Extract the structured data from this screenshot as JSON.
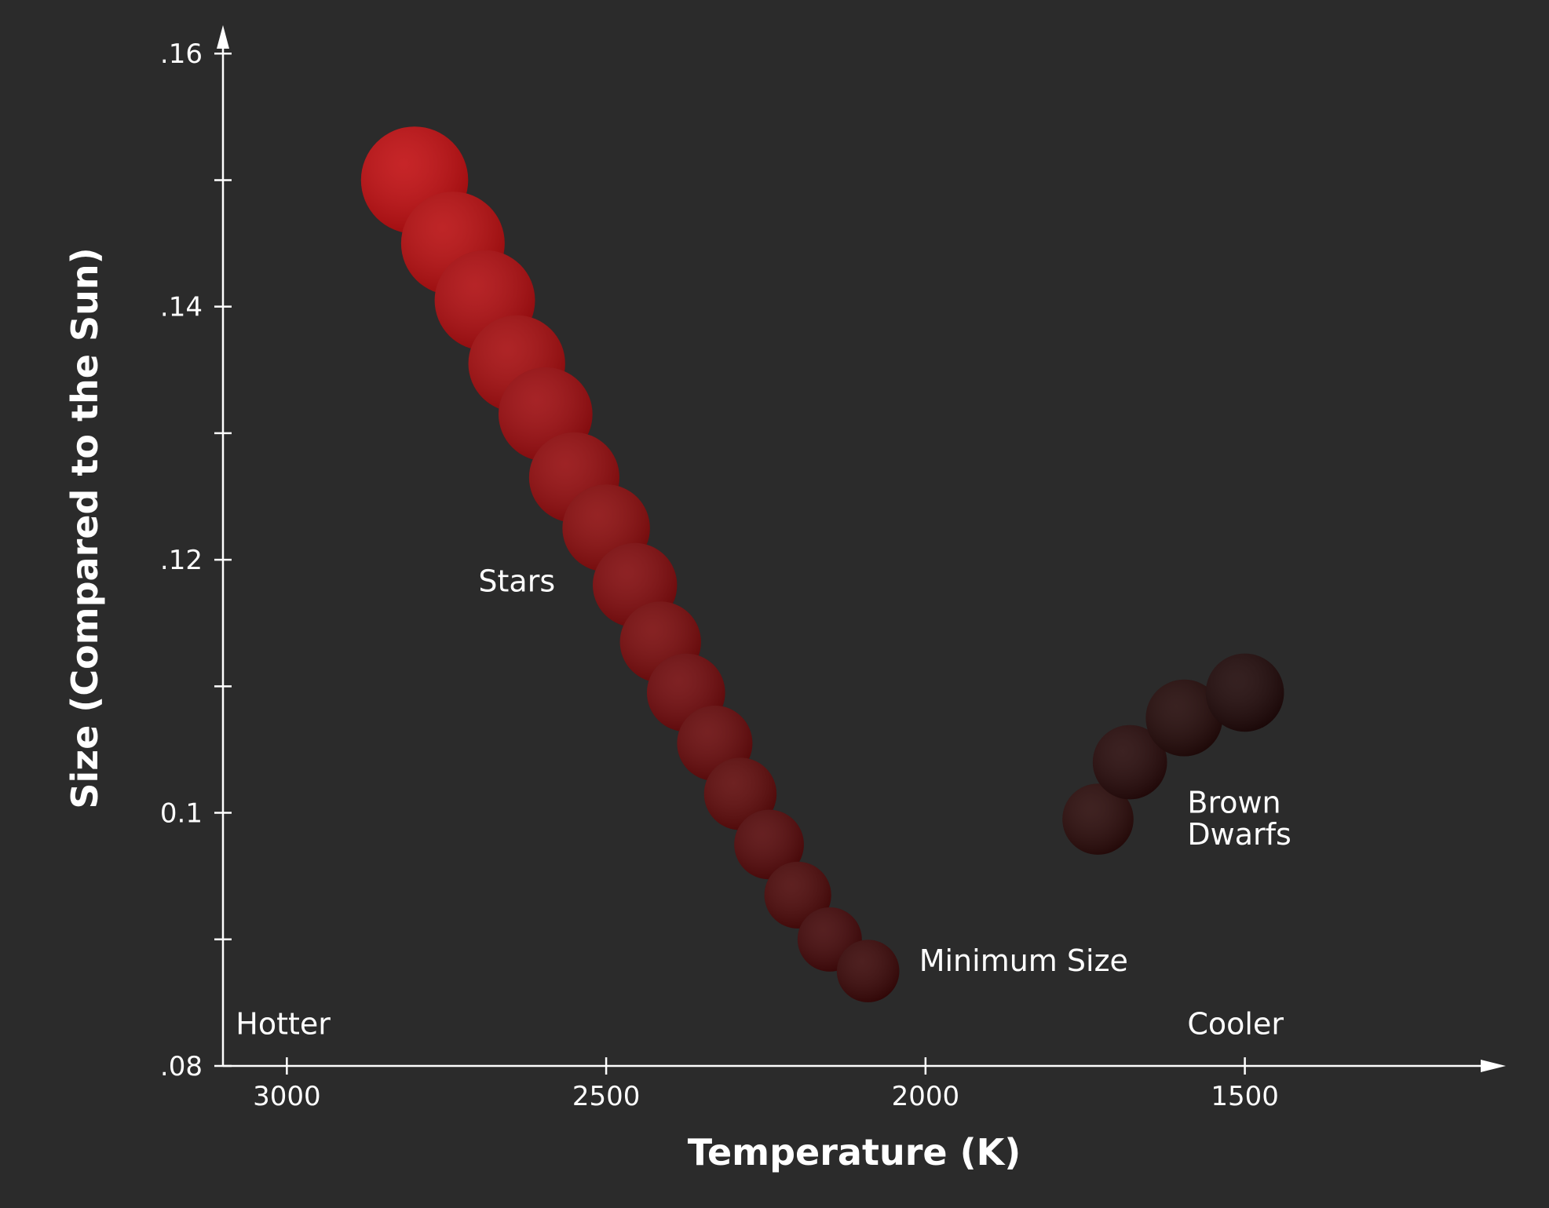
{
  "chart_data": {
    "type": "scatter",
    "xlabel": "Temperature (K)",
    "ylabel": "Size (Compared to the Sun)",
    "x_reversed": true,
    "xlim": [
      3100,
      1100
    ],
    "ylim": [
      0.08,
      0.162
    ],
    "x_ticks": [
      {
        "value": 3000,
        "label": "3000"
      },
      {
        "value": 2500,
        "label": "2500"
      },
      {
        "value": 2000,
        "label": "2000"
      },
      {
        "value": 1500,
        "label": "1500"
      }
    ],
    "y_ticks": [
      {
        "value": 0.08,
        "label": ".08"
      },
      {
        "value": 0.09,
        "label": ""
      },
      {
        "value": 0.1,
        "label": "0.1"
      },
      {
        "value": 0.11,
        "label": ""
      },
      {
        "value": 0.12,
        "label": ".12"
      },
      {
        "value": 0.13,
        "label": ""
      },
      {
        "value": 0.14,
        "label": ".14"
      },
      {
        "value": 0.15,
        "label": ""
      },
      {
        "value": 0.16,
        "label": ".16"
      }
    ],
    "grid": false,
    "legend": "none",
    "series": [
      {
        "name": "Stars",
        "color_start": "#c00d10",
        "color_end": "#3a0707",
        "points": [
          {
            "x": 2800,
            "y": 0.15
          },
          {
            "x": 2740,
            "y": 0.145
          },
          {
            "x": 2690,
            "y": 0.1405
          },
          {
            "x": 2640,
            "y": 0.1355
          },
          {
            "x": 2595,
            "y": 0.1315
          },
          {
            "x": 2550,
            "y": 0.1265
          },
          {
            "x": 2500,
            "y": 0.1225
          },
          {
            "x": 2455,
            "y": 0.118
          },
          {
            "x": 2415,
            "y": 0.1135
          },
          {
            "x": 2375,
            "y": 0.1095
          },
          {
            "x": 2330,
            "y": 0.1055
          },
          {
            "x": 2290,
            "y": 0.1015
          },
          {
            "x": 2245,
            "y": 0.0975
          },
          {
            "x": 2200,
            "y": 0.0935
          },
          {
            "x": 2150,
            "y": 0.09
          },
          {
            "x": 2090,
            "y": 0.0875
          }
        ]
      },
      {
        "name": "Brown Dwarfs",
        "color_start": "#2a0a09",
        "color_end": "#1f0808",
        "points": [
          {
            "x": 1730,
            "y": 0.0995
          },
          {
            "x": 1680,
            "y": 0.104
          },
          {
            "x": 1595,
            "y": 0.1075
          },
          {
            "x": 1500,
            "y": 0.1095
          }
        ]
      }
    ],
    "annotations": {
      "stars": {
        "text": "Stars",
        "x": 2700,
        "y": 0.1175
      },
      "min_size": {
        "text": "Minimum Size",
        "x": 2010,
        "y": 0.0875
      },
      "brown_dwarfs_1": {
        "text": "Brown",
        "x": 1590,
        "y": 0.1
      },
      "brown_dwarfs_2": {
        "text": "Dwarfs",
        "x": 1590,
        "y": 0.0975
      },
      "hotter": {
        "text": "Hotter",
        "x": 3080,
        "y": 0.0825
      },
      "cooler": {
        "text": "Cooler",
        "x": 1590,
        "y": 0.0825
      }
    }
  }
}
